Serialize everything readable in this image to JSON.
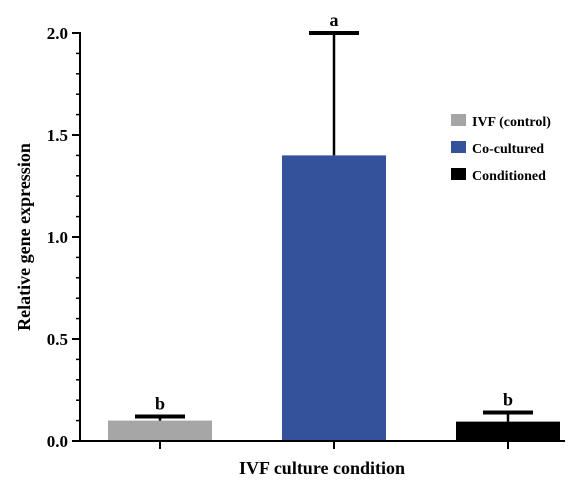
{
  "chart_data": {
    "type": "bar",
    "title": "",
    "xlabel": "IVF culture condition",
    "ylabel": "Relative gene expression",
    "ylim": [
      0,
      2.0
    ],
    "yticks": [
      0.0,
      0.5,
      1.0,
      1.5,
      2.0
    ],
    "ytick_labels": [
      "0.0",
      "0.5",
      "1.0",
      "1.5",
      "2.0"
    ],
    "grid": false,
    "legend_position": "right",
    "categories": [
      "IVF (control)",
      "Co-cultured",
      "Conditioned"
    ],
    "values": [
      0.1,
      1.4,
      0.095
    ],
    "errors": [
      0.02,
      0.6,
      0.045
    ],
    "significance": [
      "b",
      "a",
      "b"
    ],
    "colors": [
      "#a6a6a6",
      "#34519c",
      "#000000"
    ]
  }
}
